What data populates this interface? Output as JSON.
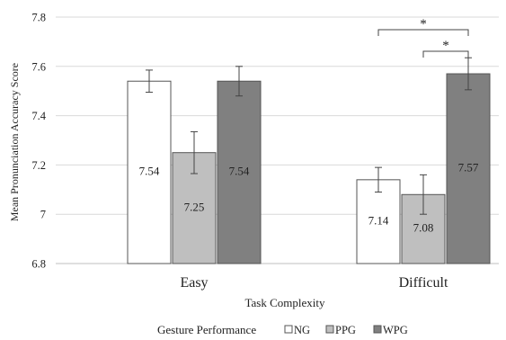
{
  "chart_data": {
    "type": "bar",
    "title": "",
    "xlabel": "Task Complexity",
    "ylabel": "Mean Pronunciation Accuracy Score",
    "categories": [
      "Easy",
      "Difficult"
    ],
    "ylim": [
      6.8,
      7.8
    ],
    "yticks": [
      "6.8",
      "7",
      "7.2",
      "7.4",
      "7.6",
      "7.8"
    ],
    "grid": true,
    "legend_title": "Gesture Performance",
    "legend_position": "bottom",
    "series": [
      {
        "name": "NG",
        "color": "#ffffff",
        "values": [
          7.54,
          7.14
        ],
        "labels": [
          "7.54",
          "7.14"
        ],
        "error": [
          0.045,
          0.05
        ]
      },
      {
        "name": "PPG",
        "color": "#bfbfbf",
        "values": [
          7.25,
          7.08
        ],
        "labels": [
          "7.25",
          "7.08"
        ],
        "error": [
          0.085,
          0.08
        ]
      },
      {
        "name": "WPG",
        "color": "#808080",
        "values": [
          7.54,
          7.57
        ],
        "labels": [
          "7.54",
          "7.57"
        ],
        "error": [
          0.06,
          0.065
        ]
      }
    ],
    "annotations": [
      {
        "text": "*",
        "category": "Difficult",
        "from_series": "NG",
        "to_series": "WPG"
      },
      {
        "text": "*",
        "category": "Difficult",
        "from_series": "PPG",
        "to_series": "WPG"
      }
    ]
  }
}
